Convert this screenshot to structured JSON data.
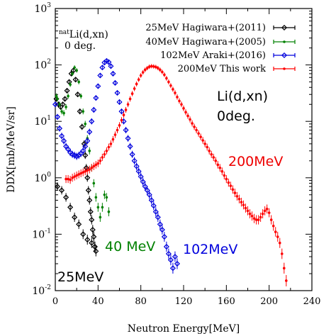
{
  "chart_data": {
    "type": "scatter",
    "xlabel": "Neutron Energy[MeV]",
    "ylabel": "DDX[mb/MeV/sr]",
    "xlim": [
      0,
      240
    ],
    "ylim": [
      0.01,
      1000
    ],
    "yscale": "log",
    "x_ticks": [
      "0",
      "40",
      "80",
      "120",
      "160",
      "200",
      "240"
    ],
    "y_ticks": [
      {
        "base": "10",
        "exp": "-2"
      },
      {
        "base": "10",
        "exp": "-1"
      },
      {
        "base": "10",
        "exp": "0"
      },
      {
        "base": "10",
        "exp": "1"
      },
      {
        "base": "10",
        "exp": "2"
      },
      {
        "base": "10",
        "exp": "3"
      }
    ],
    "legend_position": "top-right",
    "reaction_label": {
      "sup": "nat",
      "main": "Li(d,xn)",
      "line2": "0 deg."
    },
    "annotations": {
      "reaction": "Li(d,xn)",
      "angle": "0deg.",
      "e200": "200MeV",
      "e102": "102MeV",
      "e40": "40 MeV",
      "e25": "25MeV"
    },
    "series": [
      {
        "name": "25MeV Hagiwara+(2011)",
        "color": "#000000",
        "marker": "open-diamond",
        "x": [
          1,
          3,
          5,
          7,
          9,
          11,
          13,
          15,
          17,
          19,
          21,
          23,
          25,
          27,
          28,
          29,
          30,
          31,
          32,
          33,
          34,
          35,
          36,
          37,
          38,
          2,
          6,
          10,
          14,
          18,
          22,
          26,
          30,
          34,
          37
        ],
        "y": [
          25,
          20,
          18,
          20,
          25,
          35,
          50,
          70,
          80,
          55,
          30,
          15,
          8,
          4,
          2.5,
          1.5,
          1.0,
          0.6,
          0.4,
          0.25,
          0.18,
          0.12,
          0.09,
          0.06,
          0.05,
          0.7,
          0.6,
          0.45,
          0.3,
          0.2,
          0.15,
          0.1,
          0.08,
          0.07,
          0.06
        ]
      },
      {
        "name": "40MeV Hagiwara+(2005)",
        "color": "#008000",
        "marker": "filled-circle",
        "x": [
          1,
          2,
          4,
          6,
          8,
          10,
          12,
          14,
          16,
          18,
          20,
          22,
          24,
          26,
          28,
          30,
          32,
          34,
          36,
          38,
          40,
          42,
          44,
          46,
          48,
          50
        ],
        "y": [
          28,
          25,
          20,
          15,
          14,
          18,
          28,
          45,
          70,
          90,
          80,
          50,
          28,
          15,
          9,
          5,
          3,
          1.5,
          0.8,
          0.45,
          0.3,
          0.2,
          0.3,
          0.5,
          0.45,
          0.25
        ]
      },
      {
        "name": "102MeV Araki+(2016)",
        "color": "#0000dd",
        "marker": "open-diamond",
        "x": [
          0,
          2,
          4,
          6,
          8,
          10,
          12,
          14,
          16,
          18,
          20,
          22,
          24,
          26,
          28,
          30,
          32,
          34,
          36,
          38,
          40,
          42,
          44,
          46,
          48,
          50,
          52,
          54,
          56,
          58,
          60,
          62,
          64,
          66,
          68,
          70,
          72,
          74,
          76,
          78,
          80,
          82,
          84,
          86,
          88,
          90,
          92,
          94,
          96,
          98,
          100,
          102,
          104,
          106,
          108,
          110,
          112,
          114
        ],
        "y": [
          20,
          12,
          7.5,
          5.5,
          4.5,
          3.6,
          3.2,
          2.8,
          2.6,
          2.5,
          2.4,
          2.5,
          2.7,
          3.0,
          3.6,
          4.5,
          6.5,
          10,
          16,
          26,
          42,
          65,
          90,
          110,
          118,
          112,
          95,
          70,
          48,
          32,
          22,
          15,
          10,
          7,
          5,
          3.6,
          2.6,
          2.0,
          1.6,
          1.3,
          1.05,
          0.85,
          0.7,
          0.6,
          0.5,
          0.4,
          0.32,
          0.25,
          0.2,
          0.15,
          0.12,
          0.09,
          0.06,
          0.045,
          0.035,
          0.025,
          0.04,
          0.03
        ]
      },
      {
        "name": "200MeV This work",
        "color": "#ff0000",
        "marker": "filled-circle",
        "x": [
          10,
          12,
          14,
          16,
          18,
          20,
          22,
          24,
          26,
          28,
          30,
          32,
          34,
          36,
          38,
          40,
          42,
          44,
          46,
          48,
          50,
          52,
          54,
          56,
          58,
          60,
          62,
          64,
          66,
          68,
          70,
          72,
          74,
          76,
          78,
          80,
          82,
          84,
          86,
          88,
          90,
          92,
          94,
          96,
          98,
          100,
          102,
          104,
          106,
          108,
          110,
          112,
          114,
          116,
          118,
          120,
          122,
          124,
          126,
          128,
          130,
          132,
          134,
          136,
          138,
          140,
          142,
          144,
          146,
          148,
          150,
          152,
          154,
          156,
          158,
          160,
          162,
          164,
          166,
          168,
          170,
          172,
          174,
          176,
          178,
          180,
          182,
          184,
          186,
          188,
          190,
          192,
          194,
          196,
          198,
          200,
          202,
          204,
          206,
          208,
          210,
          212,
          214,
          216
        ],
        "y": [
          0.95,
          0.95,
          0.92,
          1.0,
          1.05,
          1.1,
          1.15,
          1.2,
          1.25,
          1.3,
          1.35,
          1.4,
          1.5,
          1.6,
          1.7,
          1.8,
          2.0,
          2.3,
          2.6,
          3.0,
          3.5,
          4.0,
          4.8,
          5.8,
          7.0,
          8.5,
          10.5,
          13,
          16,
          20,
          25,
          31,
          38,
          46,
          55,
          65,
          74,
          82,
          88,
          93,
          95,
          94,
          92,
          88,
          82,
          75,
          67,
          58,
          50,
          43,
          37,
          32,
          27,
          23,
          20,
          17,
          14.5,
          12.5,
          10.8,
          9.2,
          8.0,
          7.0,
          6.1,
          5.3,
          4.6,
          4.0,
          3.5,
          3.0,
          2.6,
          2.3,
          2.0,
          1.7,
          1.5,
          1.3,
          1.1,
          0.95,
          0.82,
          0.72,
          0.62,
          0.54,
          0.47,
          0.42,
          0.37,
          0.33,
          0.29,
          0.26,
          0.23,
          0.21,
          0.19,
          0.18,
          0.18,
          0.2,
          0.23,
          0.26,
          0.28,
          0.24,
          0.18,
          0.14,
          0.11,
          0.09,
          0.07,
          0.045,
          0.025,
          0.015
        ]
      }
    ]
  }
}
